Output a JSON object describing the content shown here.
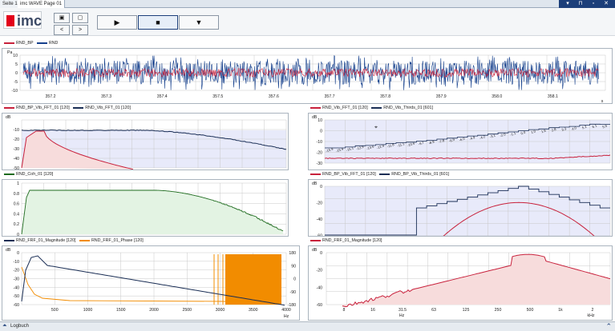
{
  "tabs": [
    "Seite 1",
    "imc WAVE Page 01"
  ],
  "logo": "imc",
  "toolbar": {
    "play": "▶",
    "stop": "■",
    "menu": "▼",
    "back": "<",
    "fwd": ">"
  },
  "colors": {
    "red": "#c8213c",
    "blue": "#143f8c",
    "navy": "#1a2e55",
    "green": "#1e6b1e",
    "orange": "#f28c00",
    "grid": "#c8c8c8",
    "fill_blue": "#e8eafa",
    "fill_red": "#f7dcdc",
    "fill_green": "#e3f3e3"
  },
  "p1": {
    "legend": [
      "RND_BP",
      "RND"
    ],
    "ylabel": "Pa",
    "yticks": [
      "10",
      "5",
      "0",
      "-5",
      "-10"
    ],
    "xticks": [
      "357.2",
      "357.3",
      "357.4",
      "357.5",
      "357.6",
      "357.7",
      "357.8",
      "357.9",
      "358.0",
      "358.1"
    ],
    "xunit": "s"
  },
  "p2": {
    "legend": [
      "RND_BP_Vib_FFT_01 [120]",
      "RND_Vib_FFT_01 [120]"
    ],
    "ylabel": "dB",
    "yticks": [
      "-10",
      "-20",
      "-30",
      "-40",
      "-50"
    ]
  },
  "p3": {
    "legend": [
      "RND_Vib_FFT_01 [120]",
      "RND_Vib_Thirds_01 [601]"
    ],
    "ylabel": "dB",
    "yticks": [
      "10",
      "0",
      "-10",
      "-20",
      "-30"
    ],
    "labels": [
      "-15.9",
      "-15.9",
      "-15.1",
      "-13.9",
      "-13.6",
      "-12.9",
      "-11.8",
      "-11.1",
      "-10.6",
      "-9.7",
      "-8.9",
      "-7.8",
      "-6.9",
      "-6.0",
      "-4.9",
      "-4.2",
      "-3.1",
      "-2.0",
      "-1.1",
      "0.0",
      "1.0",
      "1.6",
      "2.8",
      "3.3",
      "4.0",
      "5.2",
      "6.1",
      "5.9"
    ]
  },
  "p4": {
    "legend": [
      "RND_Coh_01 [120]"
    ],
    "ylabel": "",
    "yticks": [
      "1",
      "0.8",
      "0.6",
      "0.4",
      "0.2",
      "0"
    ]
  },
  "p5": {
    "legend": [
      "RND_BP_Vib_FFT_01 [120]",
      "RND_BP_Vib_Thirds_01 [601]"
    ],
    "ylabel": "dB",
    "yticks": [
      "0",
      "-20",
      "-40",
      "-60"
    ]
  },
  "p6": {
    "legend": [
      "RND_FRF_01_Magnitude [120]",
      "RND_FRF_01_Phase [120]"
    ],
    "ylabel": "dB",
    "yticks": [
      "0",
      "-10",
      "-20",
      "-30",
      "-40",
      "-50",
      "-60"
    ],
    "y2ticks": [
      "180",
      "90",
      "0",
      "-90",
      "-180"
    ],
    "xticks": [
      "500",
      "1000",
      "1500",
      "2000",
      "2500",
      "3000",
      "3500",
      "4000"
    ],
    "xunit": "Hz"
  },
  "p7": {
    "legend": [
      "RND_FRF_01_Magnitude [120]"
    ],
    "ylabel": "dB",
    "yticks": [
      "0",
      "-20",
      "-40",
      "-60"
    ],
    "xticks": [
      "8",
      "16",
      "31.5",
      "63",
      "125",
      "250",
      "500",
      "1k",
      "2"
    ],
    "xunit": "Hz",
    "xunit2": "kHz"
  },
  "status": {
    "label": "Logbuch"
  }
}
